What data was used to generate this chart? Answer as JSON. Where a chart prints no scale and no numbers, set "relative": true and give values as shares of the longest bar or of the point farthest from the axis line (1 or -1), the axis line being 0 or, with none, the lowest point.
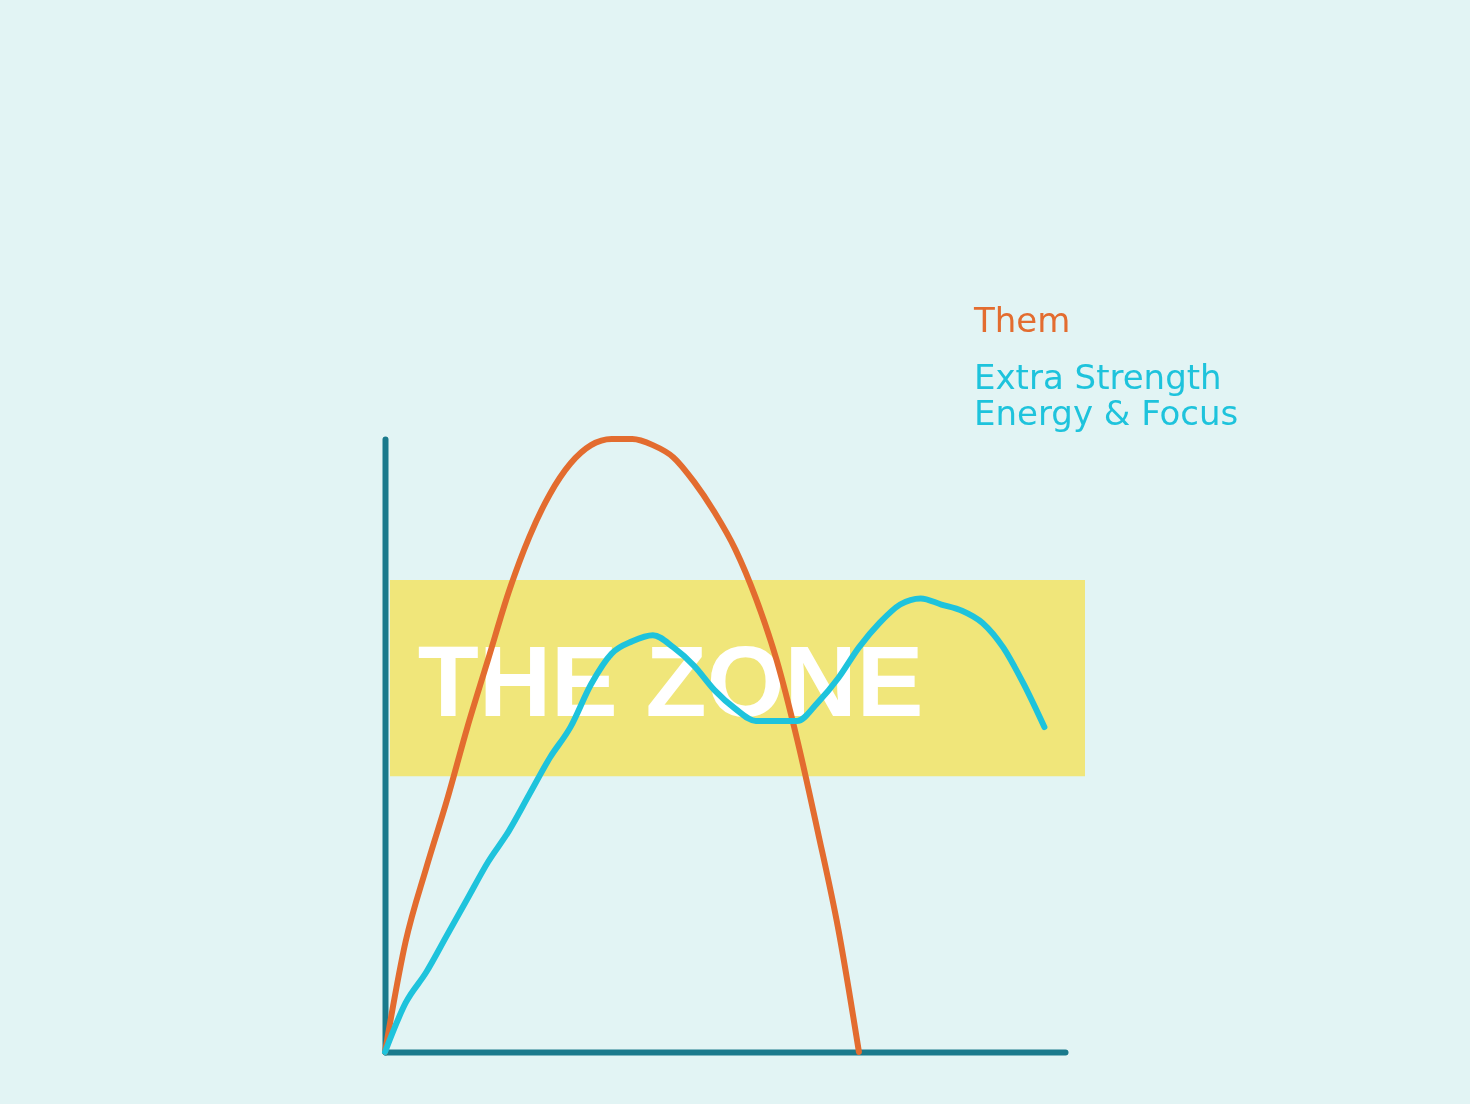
{
  "chart_data": {
    "type": "line",
    "relative": true,
    "tick_labels": false,
    "legend": "top right",
    "grid": false,
    "marker": "none",
    "line_style": "solid",
    "categories": [
      null,
      null,
      null,
      null,
      null,
      null,
      null,
      null,
      null,
      null,
      null,
      null,
      null,
      null,
      null,
      null,
      null,
      null,
      null,
      null,
      null,
      null,
      null,
      null,
      null,
      null,
      null,
      null,
      null,
      null,
      null,
      null,
      null,
      null
    ],
    "series": [
      {
        "name": "Them",
        "color": "#e36c2f",
        "values": [
          0,
          0.18,
          0.3,
          0.41,
          0.53,
          0.64,
          0.75,
          0.84,
          0.91,
          0.96,
          0.99,
          1,
          1,
          0.99,
          0.97,
          0.93,
          0.88,
          0.82,
          0.74,
          0.64,
          0.51,
          0.36,
          0.2,
          0,
          null,
          null,
          null,
          null,
          null,
          null,
          null,
          null,
          null,
          null
        ]
      },
      {
        "name": "Extra Strength Energy & Focus",
        "color": "#1ec3dc",
        "values": [
          0,
          0.08,
          0.13,
          0.19,
          0.25,
          0.31,
          0.36,
          0.42,
          0.48,
          0.53,
          0.6,
          0.65,
          0.67,
          0.68,
          0.66,
          0.63,
          0.59,
          0.56,
          0.54,
          0.54,
          0.54,
          0.57,
          0.61,
          0.66,
          0.7,
          0.73,
          0.74,
          0.73,
          0.72,
          0.7,
          0.66,
          0.6,
          0.53,
          null
        ]
      }
    ],
    "bands": [
      {
        "axis": "y",
        "from": 0.45,
        "to": 0.77,
        "label": "THE ZONE",
        "color": "#f0e67a"
      }
    ]
  }
}
